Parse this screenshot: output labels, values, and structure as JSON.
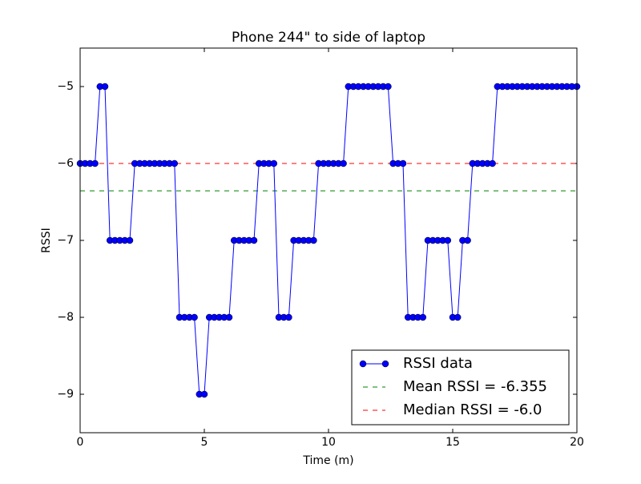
{
  "chart_data": {
    "type": "line",
    "title": "Phone 244\" to side of laptop",
    "x_label": "Time (m)",
    "y_label": "RSSI",
    "x": [
      0,
      0.2,
      0.4,
      0.6,
      0.8,
      1.0,
      1.2,
      1.4,
      1.6,
      1.8,
      2.0,
      2.2,
      2.4,
      2.6,
      2.8,
      3.0,
      3.2,
      3.4,
      3.6,
      3.8,
      4.0,
      4.2,
      4.4,
      4.6,
      4.8,
      5.0,
      5.2,
      5.4,
      5.6,
      5.8,
      6.0,
      6.2,
      6.4,
      6.6,
      6.8,
      7.0,
      7.2,
      7.4,
      7.6,
      7.8,
      8.0,
      8.2,
      8.4,
      8.6,
      8.8,
      9.0,
      9.2,
      9.4,
      9.6,
      9.8,
      10.0,
      10.2,
      10.4,
      10.6,
      10.8,
      11.0,
      11.2,
      11.4,
      11.6,
      11.8,
      12.0,
      12.2,
      12.4,
      12.6,
      12.8,
      13.0,
      13.2,
      13.4,
      13.6,
      13.8,
      14.0,
      14.2,
      14.4,
      14.6,
      14.8,
      15.0,
      15.2,
      15.4,
      15.6,
      15.8,
      16.0,
      16.2,
      16.4,
      16.6,
      16.8,
      17.0,
      17.2,
      17.4,
      17.6,
      17.8,
      18.0,
      18.2,
      18.4,
      18.6,
      18.8,
      19.0,
      19.2,
      19.4,
      19.6,
      19.8,
      20.0
    ],
    "series": [
      {
        "name": "RSSI data",
        "color": "#0000ff",
        "values": [
          -6,
          -6,
          -6,
          -6,
          -5,
          -5,
          -7,
          -7,
          -7,
          -7,
          -7,
          -6,
          -6,
          -6,
          -6,
          -6,
          -6,
          -6,
          -6,
          -6,
          -8,
          -8,
          -8,
          -8,
          -9,
          -9,
          -8,
          -8,
          -8,
          -8,
          -8,
          -7,
          -7,
          -7,
          -7,
          -7,
          -6,
          -6,
          -6,
          -6,
          -8,
          -8,
          -8,
          -7,
          -7,
          -7,
          -7,
          -7,
          -6,
          -6,
          -6,
          -6,
          -6,
          -6,
          -5,
          -5,
          -5,
          -5,
          -5,
          -5,
          -5,
          -5,
          -5,
          -6,
          -6,
          -6,
          -8,
          -8,
          -8,
          -8,
          -7,
          -7,
          -7,
          -7,
          -7,
          -8,
          -8,
          -7,
          -7,
          -6,
          -6,
          -6,
          -6,
          -6,
          -5,
          -5,
          -5,
          -5,
          -5,
          -5,
          -5,
          -5,
          -5,
          -5,
          -5,
          -5,
          -5,
          -5,
          -5,
          -5,
          -5
        ]
      }
    ],
    "hlines": [
      {
        "name": "Mean RSSI = -6.355",
        "value": -6.355,
        "color": "#008000"
      },
      {
        "name": "Median RSSI = -6.0",
        "value": -6.0,
        "color": "#ff0000"
      }
    ],
    "xlim": [
      0,
      20
    ],
    "ylim": [
      -9.5,
      -4.5
    ],
    "xticks": [
      0,
      5,
      10,
      15,
      20
    ],
    "yticks": [
      {
        "value": -9,
        "label": "−9"
      },
      {
        "value": -8,
        "label": "−8"
      },
      {
        "value": -7,
        "label": "−7"
      },
      {
        "value": -6,
        "label": "−6"
      },
      {
        "value": -5,
        "label": "−5"
      }
    ],
    "legend": "lower right"
  }
}
